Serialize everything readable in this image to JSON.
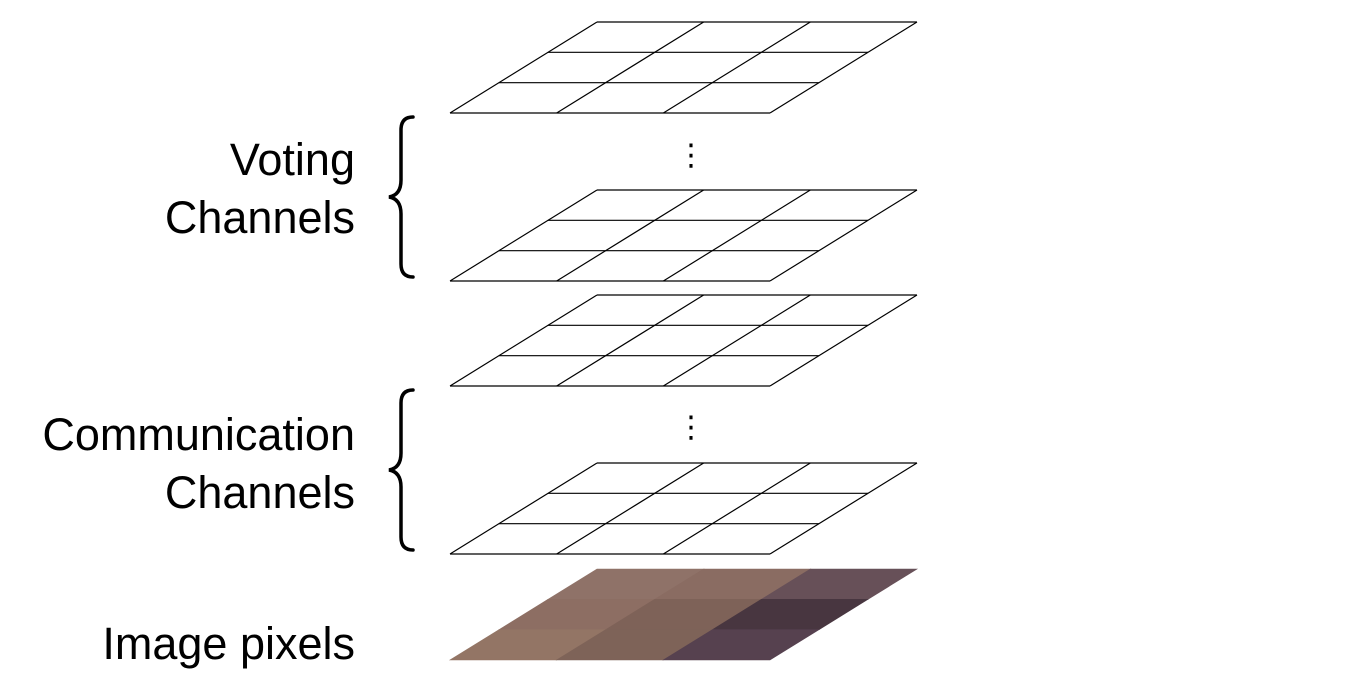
{
  "labels": {
    "voting": [
      "Voting",
      "Channels"
    ],
    "communication": [
      "Communication",
      "Channels"
    ],
    "image": "Image pixels"
  },
  "ellipsis": "⋮",
  "grid": {
    "rows": 3,
    "cols": 3
  },
  "image_pixel_colors": [
    [
      "#8f7268",
      "#8a6c62",
      "#675058"
    ],
    [
      "#8d6e63",
      "#7e6258",
      "#483640"
    ],
    [
      "#937565",
      "#7e6358",
      "#56414f"
    ]
  ],
  "colors": {
    "line": "#000000",
    "background": "#ffffff"
  }
}
